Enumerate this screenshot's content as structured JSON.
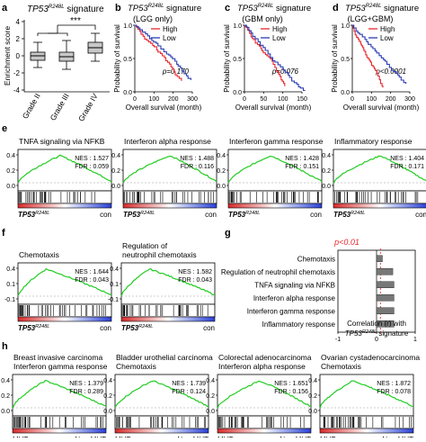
{
  "figure": {
    "panel_labels": [
      "a",
      "b",
      "c",
      "d",
      "e",
      "f",
      "g",
      "h"
    ]
  },
  "panel_a": {
    "title_main": "TP53",
    "title_sup": "R248L",
    "title_rest": " signature",
    "ylabel": "Enrichment score",
    "significance": "***",
    "yticks": [
      "4",
      "2",
      "0",
      "-2",
      "-4"
    ],
    "categories": [
      "Grade II",
      "Grade III",
      "Grade IV"
    ]
  },
  "survival": [
    {
      "title_main": "TP53",
      "title_sup": "R248L",
      "title_rest": " signature",
      "subtitle": "(LGG only)",
      "p": "p=0.170",
      "xticks": [
        "0",
        "100",
        "200",
        "300"
      ]
    },
    {
      "title_main": "TP53",
      "title_sup": "R248L",
      "title_rest": " signature",
      "subtitle": "(GBM only)",
      "p": "p=0.076",
      "xticks": [
        "0",
        "50",
        "100",
        "150"
      ]
    },
    {
      "title_main": "TP53",
      "title_sup": "R248L",
      "title_rest": " signature",
      "subtitle": "(LGG+GBM)",
      "p": "p<0.0001",
      "xticks": [
        "0",
        "100",
        "200",
        "300"
      ]
    }
  ],
  "survival_common": {
    "ylabel": "Probability of survival",
    "xlabel": "Overall survival (month)",
    "legend_high": "High",
    "legend_low": "Low",
    "yticks": [
      "1.0",
      "0.5",
      "0.0"
    ]
  },
  "panel_e": [
    {
      "title": "TNFA signaling via NFKB",
      "nes": "NES : 1.527",
      "fdr": "FDR : 0.059"
    },
    {
      "title": "Interferon alpha response",
      "nes": "NES : 1.488",
      "fdr": "FDR : 0.116"
    },
    {
      "title": "Interferon gamma response",
      "nes": "NES : 1.428",
      "fdr": "FDR : 0.151"
    },
    {
      "title": "Inflammatory response",
      "nes": "NES : 1.404",
      "fdr": "FDR : 0.171"
    }
  ],
  "panel_e_common": {
    "yticks": [
      "0.4",
      "0.2",
      "0.0"
    ],
    "left_label_main": "TP53",
    "left_label_sup": "R248L",
    "right_label": "con"
  },
  "panel_f": [
    {
      "title": "Chemotaxis",
      "nes": "NES : 1.644",
      "fdr": "FDR : 0.043"
    },
    {
      "title": "Regulation of\nneutrophil chemotaxis",
      "nes": "NES : 1.582",
      "fdr": "FDR : 0.043"
    }
  ],
  "panel_f_common": {
    "yticks": [
      "0.4",
      "0.1",
      "-0.1"
    ],
    "left_label_main": "TP53",
    "left_label_sup": "R248L",
    "right_label": "con"
  },
  "panel_g": {
    "p_label": "p<0.01",
    "xlabel_line1": "Correlation (r) with",
    "xlabel_main": "TP53",
    "xlabel_sup": "R248L",
    "xlabel_rest": " signature",
    "xticks": [
      "-1",
      "0",
      "1"
    ]
  },
  "chart_data": {
    "type": "bar",
    "categories": [
      "Chemotaxis",
      "Regulation of neutrophil chemotaxis",
      "TNFA signaling via NFKB",
      "Interferon alpha response",
      "Interferon gamma response",
      "Inflammatory response"
    ],
    "values": [
      0.15,
      0.42,
      0.45,
      0.45,
      0.45,
      0.45
    ],
    "xlim": [
      -1,
      1
    ],
    "threshold": 0.1
  },
  "panel_h": [
    {
      "title1": "Breast invasive carcinoma",
      "title2": "Interferon gamma response",
      "nes": "NES : 1.379",
      "fdr": "FDR : 0.289"
    },
    {
      "title1": "Bladder urothelial carcinoma",
      "title2": "Chemotaxis",
      "nes": "NES : 1.739",
      "fdr": "FDR : 0.124"
    },
    {
      "title1": "Colorectal adenocarcinoma",
      "title2": "Interferon alpha response",
      "nes": "NES : 1.651",
      "fdr": "FDR : 0.156"
    },
    {
      "title1": "Ovarian cystadenocarcinoma",
      "title2": "Chemotaxis",
      "nes": "NES : 1.872",
      "fdr": "FDR : 0.078"
    }
  ],
  "panel_h_common": {
    "yticks": [
      "0.4",
      "0.2",
      "0.0"
    ],
    "left_label": "MUT",
    "right_label": "Non-MUT"
  },
  "colors": {
    "high": "#e8292f",
    "low": "#2b3cb3",
    "es_curve": "#22cc22",
    "sig": "#e8292f",
    "bar": "#777777"
  }
}
